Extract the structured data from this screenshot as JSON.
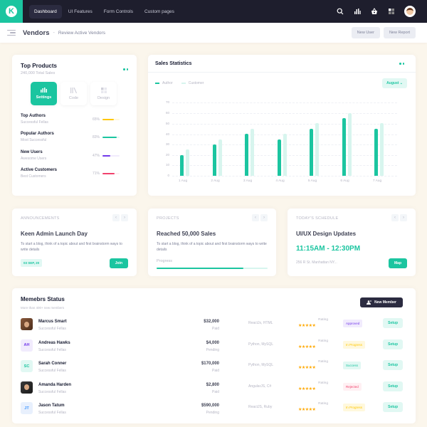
{
  "topbar": {
    "logo_letter": "K",
    "nav": [
      {
        "label": "Dashboard",
        "active": true
      },
      {
        "label": "UI Features",
        "active": false
      },
      {
        "label": "Form Controls",
        "active": false
      },
      {
        "label": "Custom pages",
        "active": false
      }
    ],
    "icons": [
      "search-icon",
      "chart-icon",
      "basket-icon",
      "grid-icon",
      "user-avatar"
    ]
  },
  "subheader": {
    "title": "Vendors",
    "separator": "-",
    "subtitle": "Review Active Vendors",
    "new_user": "New User",
    "new_report": "New Report"
  },
  "top_products": {
    "title": "Top Products",
    "subtitle": "240,000 Total Sales",
    "tabs": [
      {
        "label": "Settings",
        "icon": "bar-chart-icon",
        "active": true
      },
      {
        "label": "Code",
        "icon": "code-icon",
        "active": false
      },
      {
        "label": "Design",
        "icon": "design-icon",
        "active": false
      }
    ],
    "rows": [
      {
        "name": "Top Authors",
        "sub": "Successful Fellas",
        "pct": "65%",
        "value": 65,
        "color": "#ffc700",
        "track": "#fff8dd"
      },
      {
        "name": "Popular Authors",
        "sub": "Most Successful",
        "pct": "83%",
        "value": 83,
        "color": "#1bc5a0",
        "track": "#e1f8f3"
      },
      {
        "name": "New Users",
        "sub": "Awesome Users",
        "pct": "47%",
        "value": 47,
        "color": "#7239ea",
        "track": "#f1ebfd"
      },
      {
        "name": "Active Customers",
        "sub": "Best Customers",
        "pct": "71%",
        "value": 71,
        "color": "#f1416c",
        "track": "#fff0f3"
      }
    ]
  },
  "sales_statistics": {
    "title": "Sales Statistics",
    "legend_author": "Author",
    "legend_customer": "Customer",
    "month_select": "August"
  },
  "chart_data": {
    "type": "bar",
    "title": "Sales Statistics",
    "categories": [
      "1 Aug",
      "2 Aug",
      "3 Aug",
      "4 Aug",
      "5 Aug",
      "6 Aug",
      "7 Aug"
    ],
    "series": [
      {
        "name": "Author",
        "values": [
          20,
          30,
          40,
          35,
          45,
          55,
          45
        ],
        "color": "#1bc5a0"
      },
      {
        "name": "Customer",
        "values": [
          25,
          35,
          45,
          40,
          50,
          60,
          50
        ],
        "color": "#d7f5ee"
      }
    ],
    "yticks": [
      0,
      10,
      20,
      30,
      40,
      50,
      60,
      70
    ],
    "ylim": [
      0,
      70
    ],
    "xlabel": "",
    "ylabel": "",
    "grid": true,
    "legend_position": "top-left"
  },
  "announcements": {
    "label": "ANNOUNCEMENTS",
    "title": "Keen Admin Launch Day",
    "text": "To start a blog, think of a topic about and first brainstorm ways to write details",
    "date": "03 SEP, 20",
    "button": "Join"
  },
  "projects": {
    "label": "PROJECTS",
    "title": "Reached 50,000 Sales",
    "text": "To start a blog, think of a topic about and first brainstorm ways to write details",
    "progress_label": "Progress",
    "progress": 78
  },
  "schedule": {
    "label": "TODAY'S SCHEDULE",
    "title": "UI/UX Design Updates",
    "time": "11:15AM - 12:30PM",
    "address": "256 R St. Manhattan NY...",
    "button": "Map"
  },
  "members": {
    "title": "Memebrs Status",
    "subtitle": "More than 400+ new members",
    "new_member": "New Member",
    "rows": [
      {
        "name": "Marcus Smart",
        "sub": "Successful Fellas",
        "avatar": "photo",
        "initials": "",
        "amount": "$32,000",
        "paid": "Paid",
        "tech": "ReactJs, HTML",
        "rating_label": "Rating",
        "stars": "★★★★★",
        "status": "Approved",
        "status_bg": "#f1ebfd",
        "status_fg": "#7239ea",
        "setup": "Setup"
      },
      {
        "name": "Andreas Hawks",
        "sub": "Successful Fellas",
        "avatar": "initials",
        "initials": "AH",
        "av_bg": "#f1ebfd",
        "av_fg": "#7239ea",
        "amount": "$4,000",
        "paid": "Pending",
        "tech": "Python, MySQL",
        "rating_label": "Rating",
        "stars": "★★★★★",
        "status": "In Progress",
        "status_bg": "#fff8dd",
        "status_fg": "#ffc700",
        "setup": "Setup"
      },
      {
        "name": "Sarah Conner",
        "sub": "Successful Fellas",
        "avatar": "initials",
        "initials": "SC",
        "av_bg": "#e1f8f3",
        "av_fg": "#1bc5a0",
        "amount": "$170,000",
        "paid": "Paid",
        "tech": "Python, MySQL",
        "rating_label": "Rating",
        "stars": "★★★★★",
        "status": "Success",
        "status_bg": "#e1f8f3",
        "status_fg": "#1bc5a0",
        "setup": "Setup"
      },
      {
        "name": "Amanda Harden",
        "sub": "Successful Fellas",
        "avatar": "photo",
        "initials": "",
        "amount": "$2,800",
        "paid": "Paid",
        "tech": "AngularJS, C#",
        "rating_label": "Rating",
        "stars": "★★★★★",
        "status": "Rejected",
        "status_bg": "#fff0f3",
        "status_fg": "#f1416c",
        "setup": "Setup"
      },
      {
        "name": "Jason Tatum",
        "sub": "Successful Fellas",
        "avatar": "initials",
        "initials": "JT",
        "av_bg": "#e8f0fd",
        "av_fg": "#3e97ff",
        "amount": "$590,000",
        "paid": "Pending",
        "tech": "ReactJS, Ruby",
        "rating_label": "Rating",
        "stars": "★★★★★",
        "status": "In Progress",
        "status_bg": "#fff8dd",
        "status_fg": "#ffc700",
        "setup": "Setup"
      }
    ]
  }
}
